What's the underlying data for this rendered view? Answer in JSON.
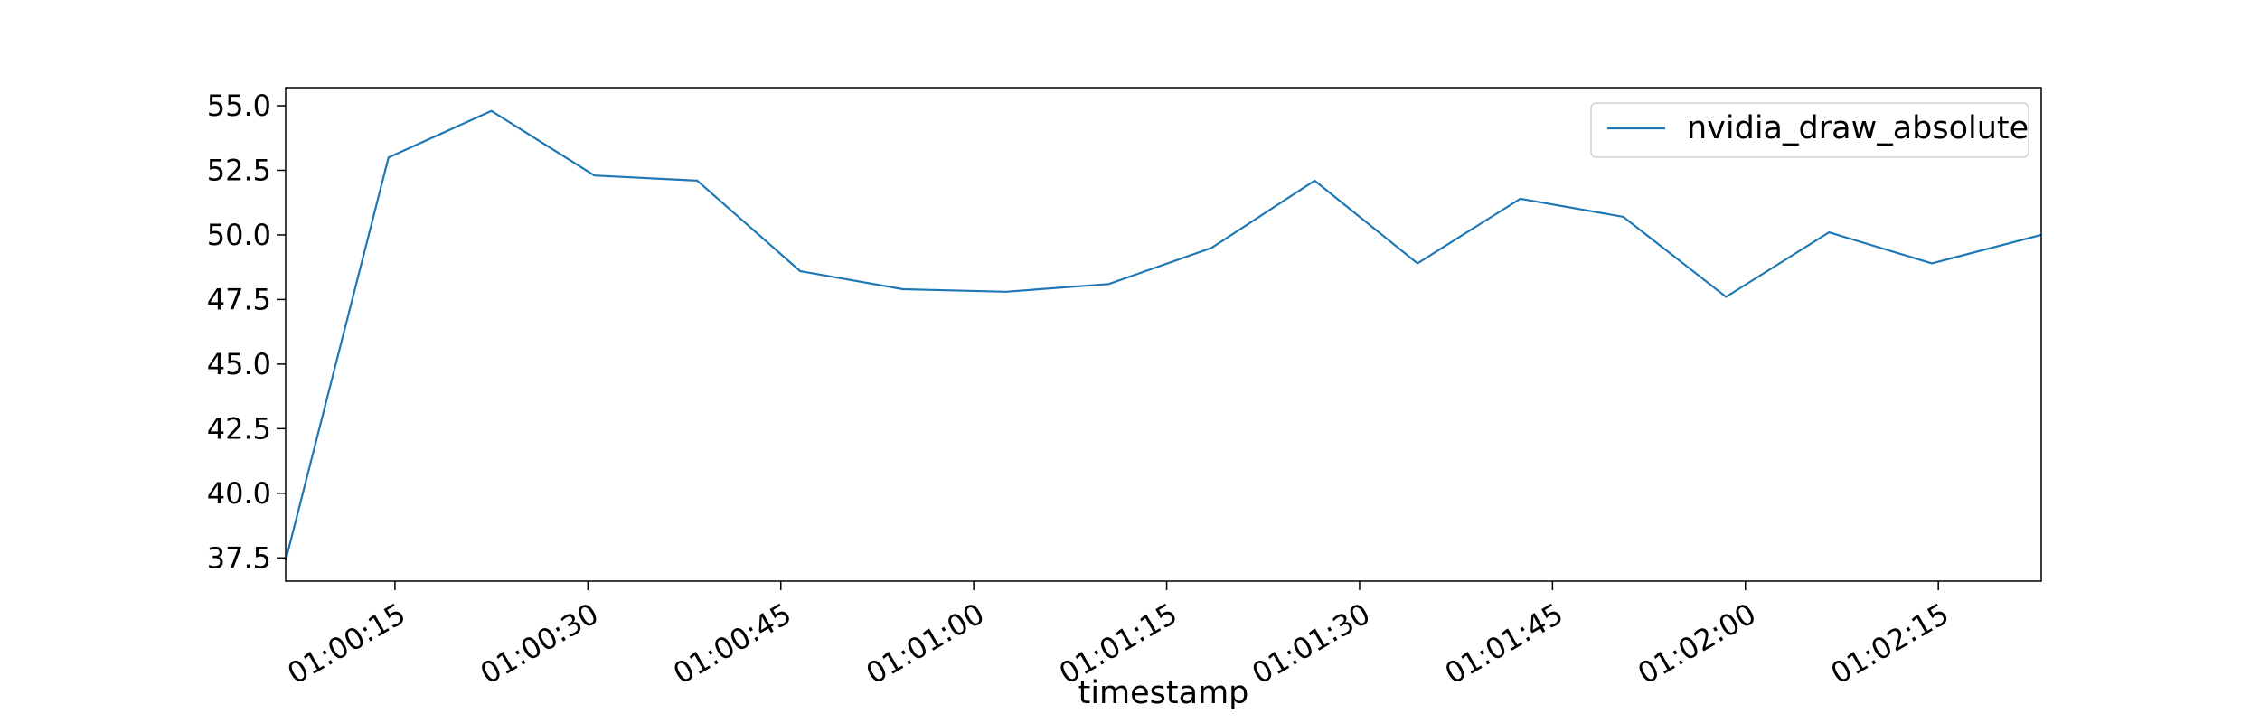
{
  "chart_data": {
    "type": "line",
    "xlabel": "timestamp",
    "ylabel": "",
    "title": "",
    "x_tick_labels": [
      "01:00:15",
      "01:00:30",
      "01:00:45",
      "01:01:00",
      "01:01:15",
      "01:01:30",
      "01:01:45",
      "01:02:00",
      "01:02:15"
    ],
    "x_tick_seconds": [
      75,
      90,
      105,
      120,
      135,
      150,
      165,
      180,
      195
    ],
    "xlim_seconds": [
      66.5,
      203
    ],
    "y_ticks": [
      37.5,
      40.0,
      42.5,
      45.0,
      47.5,
      50.0,
      52.5,
      55.0
    ],
    "y_tick_labels": [
      "37.5",
      "40.0",
      "42.5",
      "45.0",
      "47.5",
      "50.0",
      "52.5",
      "55.0"
    ],
    "ylim": [
      36.6,
      55.7
    ],
    "grid": false,
    "legend_position": "top-right",
    "series": [
      {
        "name": "nvidia_draw_absolute",
        "color": "#1f77b4",
        "x_seconds": [
          66.5,
          74.5,
          82.5,
          90.5,
          98.5,
          106.5,
          114.5,
          122.5,
          130.5,
          138.5,
          146.5,
          154.5,
          162.5,
          170.5,
          178.5,
          186.5,
          194.5,
          203
        ],
        "y": [
          37.4,
          53.0,
          54.8,
          52.3,
          52.1,
          48.6,
          47.9,
          47.8,
          48.1,
          49.5,
          52.1,
          48.9,
          51.4,
          50.7,
          47.6,
          50.1,
          48.9,
          50.0
        ]
      }
    ]
  }
}
